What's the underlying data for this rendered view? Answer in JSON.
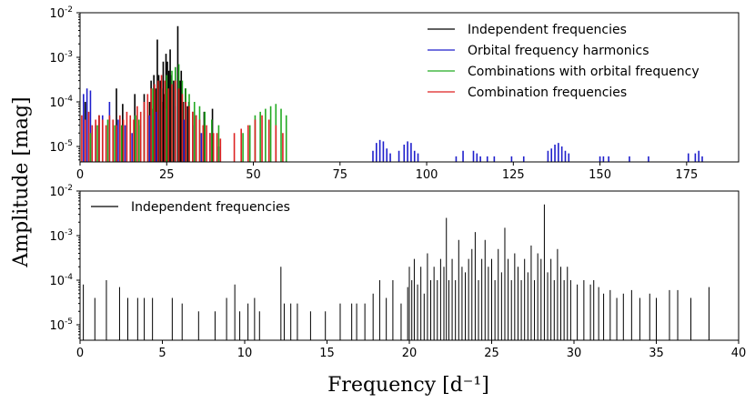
{
  "chart_data": [
    {
      "type": "bar",
      "panel": "top",
      "title": "",
      "ylabel": "Amplitude [mag]",
      "xlabel": "",
      "xlim": [
        0,
        190
      ],
      "ylim": [
        4.5e-06,
        0.01
      ],
      "yscale": "log",
      "x_ticks": [
        0,
        25,
        50,
        75,
        100,
        125,
        150,
        175
      ],
      "x_tick_labels": [
        "0",
        "25",
        "50",
        "75",
        "100",
        "125",
        "150",
        "175"
      ],
      "y_ticks": [
        1e-05,
        0.0001,
        0.001,
        0.01
      ],
      "y_tick_labels": [
        {
          "base": "10",
          "exp": "-5"
        },
        {
          "base": "10",
          "exp": "-4"
        },
        {
          "base": "10",
          "exp": "-3"
        },
        {
          "base": "10",
          "exp": "-2"
        }
      ],
      "legend_position": "top-right",
      "series": [
        {
          "name": "Independent frequencies",
          "color": "#000000",
          "x": [
            20.1,
            20.5,
            21.0,
            21.3,
            21.8,
            22.3,
            22.7,
            23.2,
            23.6,
            24.0,
            24.3,
            24.8,
            25.2,
            25.6,
            26.0,
            26.4,
            27.0,
            27.5,
            28.2,
            28.8,
            29.2,
            29.8,
            30.4,
            31.0,
            31.4,
            32.5,
            33.5,
            35.8,
            38.2,
            1.5,
            5.5,
            10.5,
            12.3,
            15.8,
            18.5,
            19.5
          ],
          "values": [
            0.0001,
            0.0003,
            7e-05,
            0.0004,
            0.0002,
            0.0025,
            0.0004,
            0.0003,
            0.0001,
            0.0008,
            0.00015,
            0.0012,
            0.0008,
            0.0005,
            0.0015,
            0.0004,
            0.0003,
            0.0006,
            0.005,
            0.0003,
            0.0005,
            0.0001,
            0.0002,
            8e-05,
            0.0001,
            6e-05,
            5e-05,
            6e-05,
            7e-05,
            0.0001,
            5e-05,
            0.0002,
            9e-05,
            0.00015,
            0.00015,
            0.0001
          ]
        },
        {
          "name": "Orbital frequency harmonics",
          "color": "#1f1fcc",
          "x": [
            1.0,
            2.0,
            3.0,
            4.5,
            6.5,
            8.5,
            11.0,
            13.0,
            15.0,
            17.5,
            20.0,
            22.0,
            24.5,
            27.5,
            30.0,
            32.5,
            35.0,
            37.5,
            40.0,
            84.5,
            85.5,
            86.5,
            87.5,
            88.5,
            89.5,
            92.0,
            93.5,
            94.5,
            95.5,
            96.5,
            97.5,
            108.5,
            110.5,
            113.5,
            114.5,
            115.5,
            117.5,
            119.5,
            124.5,
            128.0,
            135.0,
            136.0,
            137.0,
            138.0,
            139.0,
            140.0,
            141.0,
            150.0,
            151.0,
            152.5,
            158.5,
            164.0,
            175.5,
            177.5,
            178.5,
            179.5
          ],
          "values": [
            0.00015,
            0.0002,
            0.00018,
            3e-05,
            5e-05,
            0.0001,
            4e-05,
            3e-05,
            2e-05,
            3e-05,
            5e-05,
            6e-05,
            7e-05,
            8e-05,
            4e-05,
            3e-05,
            2e-05,
            2e-05,
            1e-05,
            8e-06,
            1.2e-05,
            1.4e-05,
            1.3e-05,
            9e-06,
            7e-06,
            8e-06,
            1.1e-05,
            1.3e-05,
            1.2e-05,
            8e-06,
            7e-06,
            6e-06,
            8e-06,
            8e-06,
            7e-06,
            6e-06,
            6e-06,
            6e-06,
            6e-06,
            6e-06,
            8e-06,
            9e-06,
            1.1e-05,
            1.2e-05,
            1e-05,
            8e-06,
            7e-06,
            6e-06,
            6e-06,
            6e-06,
            6e-06,
            6e-06,
            7e-06,
            7e-06,
            8e-06,
            6e-06
          ]
        },
        {
          "name": "Combinations with orbital frequency",
          "color": "#22aa22",
          "x": [
            3.0,
            5.0,
            8.0,
            10.0,
            12.0,
            14.5,
            16.0,
            17.0,
            18.5,
            19.5,
            21.0,
            22.5,
            23.5,
            25.0,
            26.5,
            27.5,
            28.5,
            29.5,
            30.5,
            31.5,
            33.0,
            34.5,
            36.0,
            38.0,
            40.0,
            47.0,
            49.0,
            50.5,
            52.0,
            53.5,
            55.0,
            56.5,
            58.0,
            59.5
          ],
          "values": [
            2e-05,
            3e-05,
            4e-05,
            3e-05,
            3e-05,
            4e-05,
            5e-05,
            4e-05,
            6e-05,
            0.0001,
            0.0002,
            0.0003,
            0.0002,
            0.0004,
            0.0005,
            0.0006,
            0.0007,
            0.0003,
            0.0002,
            0.00015,
            0.0001,
            8e-05,
            6e-05,
            4e-05,
            3e-05,
            2e-05,
            3e-05,
            5e-05,
            6e-05,
            7e-05,
            8e-05,
            9e-05,
            7e-05,
            5e-05
          ]
        },
        {
          "name": "Combination frequencies",
          "color": "#dd2222",
          "x": [
            0.5,
            1.5,
            2.5,
            3.5,
            4.5,
            5.5,
            6.5,
            7.5,
            8.5,
            9.5,
            10.5,
            11.5,
            12.5,
            13.5,
            14.5,
            15.5,
            16.5,
            17.5,
            18.5,
            19.5,
            20.5,
            21.5,
            22.5,
            23.5,
            24.5,
            25.5,
            26.5,
            27.5,
            28.5,
            29.5,
            30.5,
            31.5,
            32.5,
            33.5,
            34.5,
            35.5,
            36.5,
            37.5,
            38.5,
            39.5,
            40.5,
            44.5,
            46.5,
            48.5,
            50.5,
            52.5,
            54.5,
            56.5,
            58.5
          ],
          "values": [
            5e-05,
            4e-05,
            6e-05,
            3e-05,
            4e-05,
            5e-05,
            4e-05,
            3e-05,
            5e-05,
            4e-05,
            3e-05,
            5e-05,
            4e-05,
            6e-05,
            5e-05,
            4e-05,
            8e-05,
            6e-05,
            0.0001,
            0.00015,
            0.0002,
            0.00025,
            0.0003,
            0.0004,
            0.0003,
            0.0002,
            0.00025,
            0.0003,
            0.0002,
            0.00015,
            0.0001,
            8e-05,
            6e-05,
            5e-05,
            4e-05,
            3e-05,
            3e-05,
            2e-05,
            2e-05,
            2e-05,
            1.5e-05,
            2e-05,
            2.5e-05,
            3e-05,
            4e-05,
            5e-05,
            4e-05,
            3e-05,
            2e-05
          ]
        }
      ]
    },
    {
      "type": "bar",
      "panel": "bottom",
      "title": "",
      "xlabel": "Frequency [d⁻¹]",
      "ylabel": "Amplitude [mag]",
      "xlim": [
        0,
        40
      ],
      "ylim": [
        4.5e-06,
        0.01
      ],
      "yscale": "log",
      "x_ticks": [
        0,
        5,
        10,
        15,
        20,
        25,
        30,
        35,
        40
      ],
      "x_tick_labels": [
        "0",
        "5",
        "10",
        "15",
        "20",
        "25",
        "30",
        "35",
        "40"
      ],
      "y_ticks": [
        1e-05,
        0.0001,
        0.001,
        0.01
      ],
      "y_tick_labels": [
        {
          "base": "10",
          "exp": "-5"
        },
        {
          "base": "10",
          "exp": "-4"
        },
        {
          "base": "10",
          "exp": "-3"
        },
        {
          "base": "10",
          "exp": "-2"
        }
      ],
      "legend_position": "top-left",
      "series": [
        {
          "name": "Independent frequencies",
          "color": "#000000",
          "x": [
            0.2,
            0.9,
            1.6,
            2.4,
            2.9,
            3.5,
            3.9,
            4.4,
            5.6,
            6.2,
            7.2,
            8.2,
            8.9,
            9.4,
            9.7,
            10.2,
            10.6,
            10.9,
            12.2,
            12.4,
            12.8,
            13.2,
            14.0,
            14.9,
            15.8,
            16.5,
            16.8,
            17.3,
            17.8,
            18.2,
            18.6,
            19.0,
            19.5,
            19.9,
            20.0,
            20.15,
            20.3,
            20.5,
            20.7,
            20.9,
            21.1,
            21.3,
            21.5,
            21.7,
            21.9,
            22.1,
            22.25,
            22.4,
            22.6,
            22.8,
            23.0,
            23.2,
            23.4,
            23.6,
            23.8,
            24.0,
            24.2,
            24.4,
            24.6,
            24.8,
            25.0,
            25.2,
            25.4,
            25.6,
            25.8,
            26.0,
            26.2,
            26.4,
            26.6,
            26.8,
            27.0,
            27.2,
            27.4,
            27.6,
            27.8,
            28.0,
            28.2,
            28.4,
            28.6,
            28.8,
            29.0,
            29.2,
            29.4,
            29.6,
            29.8,
            30.2,
            30.6,
            31.0,
            31.2,
            31.5,
            31.8,
            32.2,
            32.6,
            33.0,
            33.5,
            34.0,
            34.6,
            35.0,
            35.8,
            36.3,
            37.1,
            38.2
          ],
          "values": [
            8e-05,
            4e-05,
            0.0001,
            7e-05,
            4e-05,
            4e-05,
            4e-05,
            4e-05,
            4e-05,
            3e-05,
            2e-05,
            2e-05,
            4e-05,
            8e-05,
            2e-05,
            3e-05,
            4e-05,
            2e-05,
            0.0002,
            3e-05,
            3e-05,
            3e-05,
            2e-05,
            2e-05,
            3e-05,
            3e-05,
            3e-05,
            3e-05,
            5e-05,
            0.0001,
            4e-05,
            0.0001,
            3e-05,
            7e-05,
            0.0002,
            0.0001,
            0.0003,
            8e-05,
            0.0002,
            5e-05,
            0.0004,
            0.0001,
            0.0002,
            0.0001,
            0.0003,
            0.0002,
            0.0025,
            0.0001,
            0.0003,
            0.0001,
            0.0008,
            0.0002,
            0.00015,
            0.0003,
            0.0005,
            0.0012,
            0.0001,
            0.0003,
            0.0008,
            0.0002,
            0.0003,
            0.0001,
            0.0005,
            0.00015,
            0.0015,
            0.0003,
            0.0001,
            0.0004,
            0.0002,
            0.0001,
            0.0003,
            0.00015,
            0.0006,
            0.0001,
            0.0004,
            0.0003,
            0.005,
            0.00015,
            0.0003,
            0.0001,
            0.0005,
            0.0002,
            0.0001,
            0.0002,
            0.0001,
            8e-05,
            0.0001,
            8e-05,
            0.0001,
            7e-05,
            5e-05,
            6e-05,
            4e-05,
            5e-05,
            6e-05,
            4e-05,
            5e-05,
            4e-05,
            6e-05,
            6e-05,
            4e-05,
            7e-05
          ]
        }
      ]
    }
  ]
}
